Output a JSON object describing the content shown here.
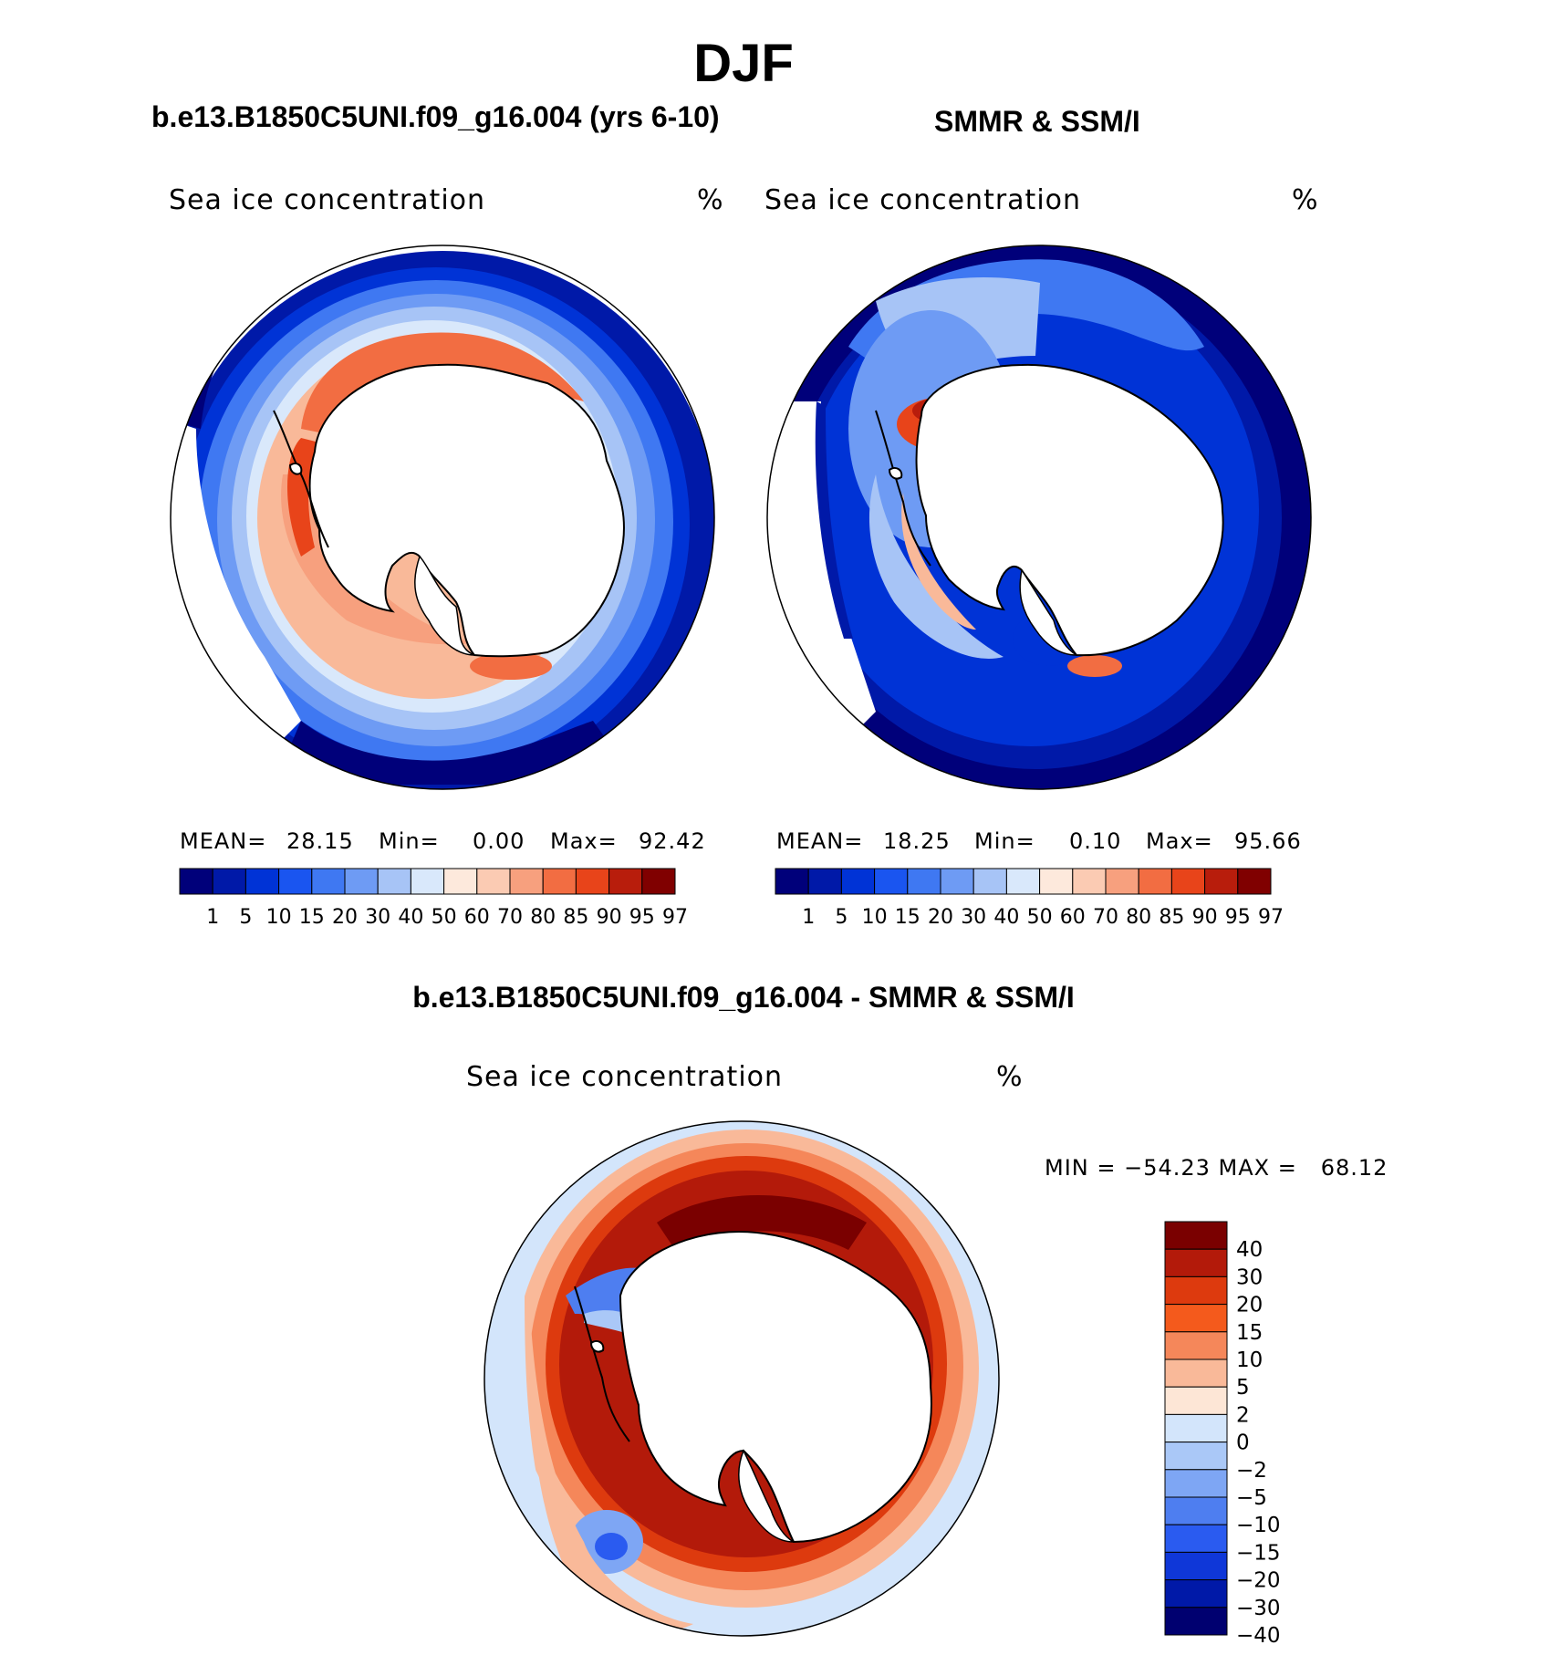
{
  "season_title": "DJF",
  "panels": {
    "model": {
      "case_title": "b.e13.B1850C5UNI.f09_g16.004 (yrs 6-10)",
      "plot_title": "Sea ice concentration",
      "unit": "%",
      "stats": {
        "mean_label": "MEAN=",
        "mean": "28.15",
        "min_label": "Min=",
        "min": "0.00",
        "max_label": "Max=",
        "max": "92.42"
      }
    },
    "obs": {
      "case_title": "SMMR & SSM/I",
      "plot_title": "Sea ice concentration",
      "unit": "%",
      "stats": {
        "mean_label": "MEAN=",
        "mean": "18.25",
        "min_label": "Min=",
        "min": "0.10",
        "max_label": "Max=",
        "max": "95.66"
      }
    },
    "diff": {
      "case_title": "b.e13.B1850C5UNI.f09_g16.004 - SMMR & SSM/I",
      "plot_title": "Sea ice concentration",
      "unit": "%",
      "minmax": "MIN = −54.23 MAX =   68.12"
    }
  },
  "colorbar_main": {
    "levels": [
      "1",
      "5",
      "10",
      "15",
      "20",
      "30",
      "40",
      "50",
      "60",
      "70",
      "80",
      "85",
      "90",
      "95",
      "97"
    ],
    "colors": [
      "#00007a",
      "#0019a8",
      "#0033d6",
      "#1a55f0",
      "#3f78f2",
      "#6e9bf4",
      "#a7c4f6",
      "#d9e8fb",
      "#fde9dc",
      "#fbcbb3",
      "#f7a07e",
      "#f26d42",
      "#e8441a",
      "#b81d0c",
      "#800000"
    ]
  },
  "colorbar_diff": {
    "levels": [
      "40",
      "30",
      "20",
      "15",
      "10",
      "5",
      "2",
      "0",
      "−2",
      "−5",
      "−10",
      "−15",
      "−20",
      "−30",
      "−40"
    ],
    "colors": [
      "#7a0000",
      "#b31a0a",
      "#dd3a0e",
      "#f45a1c",
      "#f5875a",
      "#f9b999",
      "#fde6d6",
      "#d3e5fb",
      "#aac8f7",
      "#7ea6f4",
      "#4e7ef0",
      "#2a5bf0",
      "#0f37d8",
      "#0019a8",
      "#000070"
    ]
  }
}
